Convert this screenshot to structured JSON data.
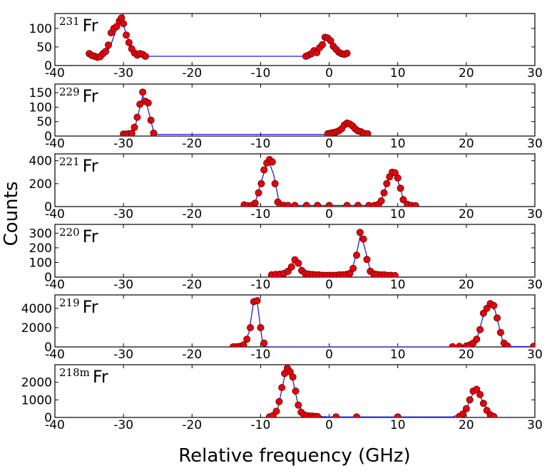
{
  "chart_data": {
    "type": "scatter",
    "xlabel": "Relative frequency (GHz)",
    "ylabel": "Counts",
    "xlim": [
      -40,
      30
    ],
    "xticks": [
      -40,
      -30,
      -20,
      -10,
      0,
      10,
      20,
      30
    ],
    "xtick_labels": [
      "-40",
      "-30",
      "-20",
      "-10",
      "0",
      "10",
      "20",
      "30"
    ],
    "marker_color": "#e8000b",
    "line_color": "#1f1fd6",
    "panels": [
      {
        "mass": "231",
        "element": "Fr",
        "ylim": [
          0,
          140
        ],
        "yticks": [
          0,
          50,
          100
        ],
        "ytick_labels": [
          "0",
          "50",
          "100"
        ],
        "points": [
          [
            -35,
            32
          ],
          [
            -34.6,
            27
          ],
          [
            -34.2,
            25
          ],
          [
            -33.8,
            22
          ],
          [
            -33.4,
            24
          ],
          [
            -33,
            32
          ],
          [
            -32.6,
            38
          ],
          [
            -32.2,
            55
          ],
          [
            -31.8,
            88
          ],
          [
            -31.4,
            100
          ],
          [
            -31,
            105
          ],
          [
            -30.6,
            120
          ],
          [
            -30.3,
            128
          ],
          [
            -30,
            113
          ],
          [
            -29.6,
            82
          ],
          [
            -29.2,
            62
          ],
          [
            -28.8,
            45
          ],
          [
            -28.4,
            34
          ],
          [
            -28,
            28
          ],
          [
            -27.6,
            32
          ],
          [
            -27.2,
            30
          ],
          [
            -26.8,
            25
          ],
          [
            -3.4,
            25
          ],
          [
            -3,
            28
          ],
          [
            -2.6,
            32
          ],
          [
            -2.2,
            40
          ],
          [
            -1.8,
            35
          ],
          [
            -1.4,
            48
          ],
          [
            -1,
            56
          ],
          [
            -0.6,
            76
          ],
          [
            -0.2,
            74
          ],
          [
            0.2,
            67
          ],
          [
            0.6,
            52
          ],
          [
            1,
            44
          ],
          [
            1.4,
            36
          ],
          [
            1.8,
            32
          ],
          [
            2.2,
            30
          ],
          [
            2.6,
            33
          ]
        ],
        "fit": [
          [
            -35.5,
            30
          ],
          [
            -34,
            24
          ],
          [
            -33,
            30
          ],
          [
            -32,
            48
          ],
          [
            -31,
            98
          ],
          [
            -30.3,
            125
          ],
          [
            -29.5,
            80
          ],
          [
            -28.5,
            40
          ],
          [
            -27.5,
            28
          ],
          [
            -26.5,
            25
          ],
          [
            -3.5,
            25
          ],
          [
            -2,
            33
          ],
          [
            -1,
            55
          ],
          [
            -0.3,
            77
          ],
          [
            0.4,
            60
          ],
          [
            1.5,
            38
          ],
          [
            2.8,
            30
          ]
        ]
      },
      {
        "mass": "229",
        "element": "Fr",
        "ylim": [
          0,
          180
        ],
        "yticks": [
          0,
          50,
          100,
          150
        ],
        "ytick_labels": [
          "0",
          "50",
          "100",
          "150"
        ],
        "points": [
          [
            -30,
            7
          ],
          [
            -29.6,
            7
          ],
          [
            -29.2,
            8
          ],
          [
            -28.8,
            9
          ],
          [
            -28.4,
            30
          ],
          [
            -28,
            65
          ],
          [
            -27.6,
            110
          ],
          [
            -27.2,
            152
          ],
          [
            -26.8,
            120
          ],
          [
            -26.4,
            115
          ],
          [
            -26,
            55
          ],
          [
            -25.6,
            10
          ],
          [
            -0.2,
            8
          ],
          [
            0.2,
            10
          ],
          [
            0.6,
            12
          ],
          [
            1,
            14
          ],
          [
            1.4,
            18
          ],
          [
            1.8,
            25
          ],
          [
            2.2,
            38
          ],
          [
            2.6,
            45
          ],
          [
            3,
            42
          ],
          [
            3.4,
            35
          ],
          [
            3.8,
            25
          ],
          [
            4.2,
            18
          ],
          [
            4.6,
            15
          ],
          [
            5,
            10
          ],
          [
            5.6,
            8
          ]
        ],
        "fit": [
          [
            -30,
            7
          ],
          [
            -28.5,
            15
          ],
          [
            -27.8,
            80
          ],
          [
            -27.2,
            140
          ],
          [
            -26.5,
            100
          ],
          [
            -25.6,
            15
          ],
          [
            -25.2,
            6
          ],
          [
            -0.3,
            6
          ],
          [
            1,
            14
          ],
          [
            2,
            30
          ],
          [
            2.7,
            42
          ],
          [
            3.5,
            32
          ],
          [
            4.5,
            14
          ],
          [
            5.8,
            7
          ]
        ]
      },
      {
        "mass": "221",
        "element": "Fr",
        "ylim": [
          0,
          460
        ],
        "yticks": [
          0,
          200,
          400
        ],
        "ytick_labels": [
          "0",
          "200",
          "400"
        ],
        "points": [
          [
            -12.4,
            15
          ],
          [
            -11.9,
            8
          ],
          [
            -11.3,
            10
          ],
          [
            -10.8,
            30
          ],
          [
            -10.3,
            120
          ],
          [
            -9.9,
            200
          ],
          [
            -9.5,
            320
          ],
          [
            -9.1,
            380
          ],
          [
            -8.7,
            410
          ],
          [
            -8.3,
            390
          ],
          [
            -7.9,
            200
          ],
          [
            -7.5,
            40
          ],
          [
            -7.1,
            15
          ],
          [
            -6.6,
            10
          ],
          [
            -6,
            10
          ],
          [
            -5,
            10
          ],
          [
            -3.3,
            10
          ],
          [
            -1.7,
            10
          ],
          [
            0,
            10
          ],
          [
            2.6,
            10
          ],
          [
            4.2,
            10
          ],
          [
            5.8,
            10
          ],
          [
            6.6,
            10
          ],
          [
            7.2,
            20
          ],
          [
            7.6,
            50
          ],
          [
            8,
            120
          ],
          [
            8.4,
            200
          ],
          [
            8.8,
            260
          ],
          [
            9.2,
            300
          ],
          [
            9.6,
            295
          ],
          [
            10,
            250
          ],
          [
            10.4,
            160
          ],
          [
            10.8,
            60
          ],
          [
            11.4,
            20
          ],
          [
            12,
            10
          ],
          [
            12.6,
            8
          ]
        ],
        "fit": [
          [
            -12.5,
            10
          ],
          [
            -10.8,
            30
          ],
          [
            -10,
            200
          ],
          [
            -8.9,
            410
          ],
          [
            -8.1,
            280
          ],
          [
            -7.3,
            35
          ],
          [
            -6.5,
            10
          ],
          [
            6.5,
            10
          ],
          [
            7.5,
            40
          ],
          [
            8.5,
            220
          ],
          [
            9.3,
            305
          ],
          [
            10,
            230
          ],
          [
            10.9,
            50
          ],
          [
            12.6,
            10
          ]
        ]
      },
      {
        "mass": "220",
        "element": "Fr",
        "ylim": [
          0,
          360
        ],
        "yticks": [
          0,
          100,
          200,
          300
        ],
        "ytick_labels": [
          "0",
          "100",
          "200",
          "300"
        ],
        "points": [
          [
            -8.4,
            15
          ],
          [
            -7.8,
            18
          ],
          [
            -7.2,
            20
          ],
          [
            -6.6,
            25
          ],
          [
            -6,
            40
          ],
          [
            -5.5,
            70
          ],
          [
            -5,
            118
          ],
          [
            -4.5,
            95
          ],
          [
            -4,
            45
          ],
          [
            -3.5,
            25
          ],
          [
            -3,
            20
          ],
          [
            -2.5,
            18
          ],
          [
            -2,
            15
          ],
          [
            -1.5,
            15
          ],
          [
            -1,
            12
          ],
          [
            -0.5,
            12
          ],
          [
            0,
            12
          ],
          [
            0.5,
            12
          ],
          [
            1,
            12
          ],
          [
            1.5,
            15
          ],
          [
            2,
            15
          ],
          [
            2.5,
            18
          ],
          [
            3,
            25
          ],
          [
            3.5,
            60
          ],
          [
            4,
            150
          ],
          [
            4.5,
            305
          ],
          [
            5,
            260
          ],
          [
            5.5,
            120
          ],
          [
            6,
            40
          ],
          [
            6.5,
            22
          ],
          [
            7,
            18
          ],
          [
            7.5,
            15
          ],
          [
            8,
            15
          ],
          [
            8.5,
            12
          ],
          [
            9,
            12
          ],
          [
            9.6,
            10
          ]
        ],
        "fit": [
          [
            -8.5,
            15
          ],
          [
            -6.5,
            25
          ],
          [
            -5.6,
            70
          ],
          [
            -5,
            118
          ],
          [
            -4.3,
            80
          ],
          [
            -3.5,
            28
          ],
          [
            -2,
            15
          ],
          [
            2,
            15
          ],
          [
            3.2,
            30
          ],
          [
            4,
            160
          ],
          [
            4.6,
            300
          ],
          [
            5.3,
            180
          ],
          [
            6,
            45
          ],
          [
            7,
            20
          ],
          [
            9.6,
            12
          ]
        ]
      },
      {
        "mass": "219",
        "element": "Fr",
        "ylim": [
          0,
          5400
        ],
        "yticks": [
          0,
          2000,
          4000
        ],
        "ytick_labels": [
          "0",
          "2000",
          "4000"
        ],
        "points": [
          [
            -14,
            10
          ],
          [
            -13.5,
            20
          ],
          [
            -13,
            50
          ],
          [
            -12.5,
            200
          ],
          [
            -12,
            800
          ],
          [
            -11.5,
            2000
          ],
          [
            -11,
            4700
          ],
          [
            -10.5,
            4800
          ],
          [
            -10,
            2000
          ],
          [
            -9.5,
            400
          ],
          [
            18,
            20
          ],
          [
            19,
            50
          ],
          [
            20,
            100
          ],
          [
            20.5,
            200
          ],
          [
            21,
            400
          ],
          [
            21.5,
            800
          ],
          [
            22,
            1800
          ],
          [
            22.5,
            3500
          ],
          [
            23,
            4000
          ],
          [
            23.5,
            4500
          ],
          [
            24,
            4300
          ],
          [
            24.5,
            3000
          ],
          [
            25,
            1500
          ],
          [
            25.5,
            400
          ],
          [
            26,
            100
          ],
          [
            29.8,
            50
          ]
        ],
        "fit": [
          [
            -14,
            0
          ],
          [
            -12.5,
            100
          ],
          [
            -11.7,
            1500
          ],
          [
            -11,
            4800
          ],
          [
            -10.5,
            4700
          ],
          [
            -9.8,
            800
          ],
          [
            -9.2,
            30
          ],
          [
            -8.5,
            0
          ],
          [
            18,
            0
          ],
          [
            20.5,
            150
          ],
          [
            21.5,
            700
          ],
          [
            22.5,
            3300
          ],
          [
            23.3,
            4400
          ],
          [
            24.2,
            3800
          ],
          [
            25.3,
            600
          ],
          [
            26.5,
            50
          ],
          [
            29.8,
            20
          ]
        ]
      },
      {
        "mass": "218m",
        "element": "Fr",
        "ylim": [
          0,
          3000
        ],
        "yticks": [
          0,
          1000,
          2000
        ],
        "ytick_labels": [
          "0",
          "1000",
          "2000"
        ],
        "points": [
          [
            -8.7,
            30
          ],
          [
            -8.2,
            100
          ],
          [
            -7.7,
            350
          ],
          [
            -7.3,
            900
          ],
          [
            -6.9,
            1700
          ],
          [
            -6.5,
            2500
          ],
          [
            -6.1,
            2800
          ],
          [
            -5.7,
            2600
          ],
          [
            -5.3,
            2300
          ],
          [
            -4.9,
            1500
          ],
          [
            -4.5,
            700
          ],
          [
            -4.1,
            300
          ],
          [
            -3.7,
            150
          ],
          [
            -3.3,
            100
          ],
          [
            -2.9,
            80
          ],
          [
            -2.5,
            70
          ],
          [
            -2.1,
            60
          ],
          [
            -1.7,
            50
          ],
          [
            1,
            30
          ],
          [
            4,
            30
          ],
          [
            10,
            30
          ],
          [
            19,
            60
          ],
          [
            19.5,
            200
          ],
          [
            20,
            500
          ],
          [
            20.5,
            1000
          ],
          [
            21,
            1500
          ],
          [
            21.5,
            1600
          ],
          [
            22,
            1300
          ],
          [
            22.5,
            800
          ],
          [
            23,
            400
          ],
          [
            23.5,
            150
          ],
          [
            24,
            50
          ]
        ],
        "fit": [
          [
            -9,
            0
          ],
          [
            -7.5,
            500
          ],
          [
            -6.3,
            2700
          ],
          [
            -5.5,
            2500
          ],
          [
            -4.7,
            1000
          ],
          [
            -3.8,
            200
          ],
          [
            -2,
            60
          ],
          [
            0,
            30
          ],
          [
            18,
            30
          ],
          [
            19.8,
            300
          ],
          [
            21,
            1400
          ],
          [
            21.6,
            1600
          ],
          [
            22.5,
            800
          ],
          [
            23.5,
            150
          ],
          [
            24.5,
            20
          ]
        ]
      }
    ]
  }
}
